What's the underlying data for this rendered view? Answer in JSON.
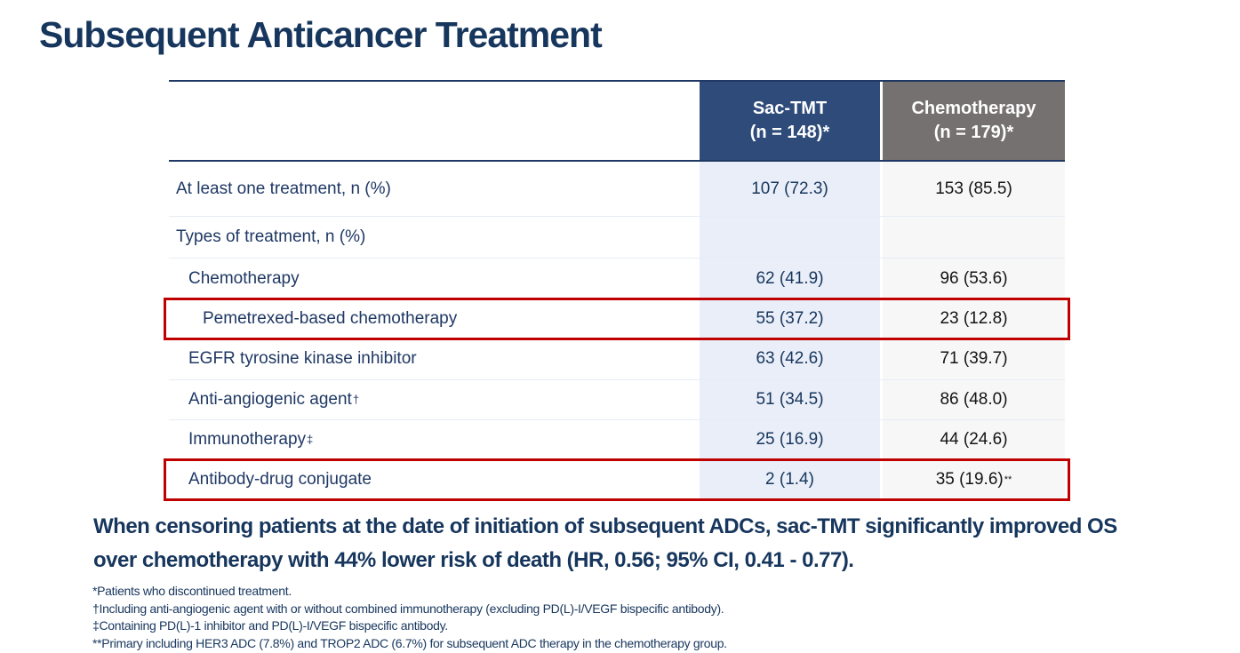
{
  "title": "Subsequent Anticancer Treatment",
  "table": {
    "columns": [
      {
        "name": "sac_tmt",
        "label_line1": "Sac-TMT",
        "label_line2": "(n = 148)*"
      },
      {
        "name": "chemotherapy",
        "label_line1": "Chemotherapy",
        "label_line2": "(n = 179)*"
      }
    ],
    "rows": [
      {
        "label": "At least one treatment, n (%)",
        "sup": "",
        "indent": 0,
        "sac": "107 (72.3)",
        "chemo": "153 (85.5)",
        "chemo_sup": "",
        "highlighted": false
      },
      {
        "label": "Types of treatment, n (%)",
        "sup": "",
        "indent": 0,
        "sac": "",
        "chemo": "",
        "chemo_sup": "",
        "highlighted": false
      },
      {
        "label": "Chemotherapy",
        "sup": "",
        "indent": 1,
        "sac": "62 (41.9)",
        "chemo": "96 (53.6)",
        "chemo_sup": "",
        "highlighted": false
      },
      {
        "label": "Pemetrexed-based chemotherapy",
        "sup": "",
        "indent": 2,
        "sac": "55 (37.2)",
        "chemo": "23 (12.8)",
        "chemo_sup": "",
        "highlighted": true
      },
      {
        "label": "EGFR tyrosine kinase inhibitor",
        "sup": "",
        "indent": 1,
        "sac": "63 (42.6)",
        "chemo": "71 (39.7)",
        "chemo_sup": "",
        "highlighted": false
      },
      {
        "label": "Anti-angiogenic agent",
        "sup": "†",
        "indent": 1,
        "sac": "51 (34.5)",
        "chemo": "86 (48.0)",
        "chemo_sup": "",
        "highlighted": false
      },
      {
        "label": "Immunotherapy",
        "sup": "‡",
        "indent": 1,
        "sac": "25 (16.9)",
        "chemo": "44 (24.6)",
        "chemo_sup": "",
        "highlighted": false
      },
      {
        "label": "Antibody-drug conjugate",
        "sup": "",
        "indent": 1,
        "sac": "2 (1.4)",
        "chemo": "35 (19.6)",
        "chemo_sup": "**",
        "highlighted": true
      }
    ]
  },
  "statement": {
    "lines": [
      "When censoring patients at the date of initiation of subsequent ADCs, sac-TMT significantly improved OS",
      "over chemotherapy with 44% lower risk of death (HR, 0.56; 95% CI, 0.41 - 0.77)."
    ]
  },
  "footnotes": [
    "*Patients who discontinued treatment.",
    "†Including anti-angiogenic agent with or without combined immunotherapy (excluding PD(L)-I/VEGF bispecific antibody).",
    "‡Containing PD(L)-1 inhibitor and PD(L)-I/VEGF bispecific antibody.",
    "**Primary including HER3 ADC (7.8%) and TROP2 ADC (6.7%) for subsequent ADC therapy in the chemotherapy group."
  ],
  "colors": {
    "title_navy": "#17365D",
    "table_border_navy": "#1F3864",
    "header_sac_bg": "#2E4B7A",
    "header_chemo_bg": "#767171",
    "sac_column_bg": "#E9EEF8",
    "chemo_column_bg": "#F7F7F7",
    "highlight_red": "#C00000"
  }
}
